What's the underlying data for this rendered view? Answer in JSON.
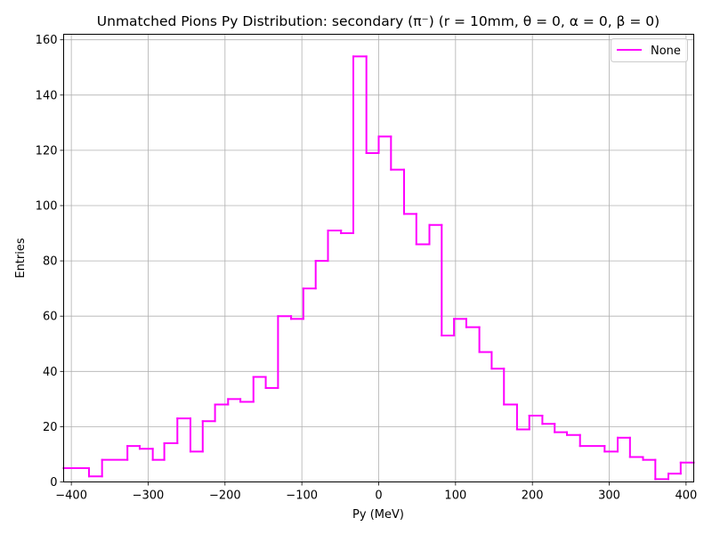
{
  "chart_data": {
    "type": "step",
    "title": "Unmatched Pions Py Distribution: secondary (π⁻) (r = 10mm, θ = 0, α = 0, β = 0)",
    "xlabel": "Py (MeV)",
    "ylabel": "Entries",
    "xlim": [
      -410,
      410
    ],
    "ylim": [
      0,
      162
    ],
    "grid": true,
    "legend_position": "top-right",
    "line_color": "#ff00ff",
    "xticks": [
      -400,
      -300,
      -200,
      -100,
      0,
      100,
      200,
      300,
      400
    ],
    "xtick_labels": [
      "−400",
      "−300",
      "−200",
      "−100",
      "0",
      "100",
      "200",
      "300",
      "400"
    ],
    "yticks": [
      0,
      20,
      40,
      60,
      80,
      100,
      120,
      140,
      160
    ],
    "ytick_labels": [
      "0",
      "20",
      "40",
      "60",
      "80",
      "100",
      "120",
      "140",
      "160"
    ],
    "series": [
      {
        "name": "None",
        "bin_edges": [
          -410,
          -377,
          -360,
          -327,
          -311,
          -294,
          -279,
          -262,
          -245,
          -229,
          -213,
          -196,
          -180,
          -163,
          -147,
          -131,
          -114,
          -98,
          -82,
          -66,
          -49,
          -33,
          -16,
          0,
          16,
          33,
          49,
          66,
          82,
          98,
          114,
          131,
          147,
          163,
          180,
          196,
          213,
          229,
          245,
          262,
          294,
          311,
          327,
          344,
          360,
          377,
          393,
          410
        ],
        "values": [
          5,
          2,
          8,
          13,
          12,
          8,
          14,
          23,
          11,
          22,
          28,
          30,
          29,
          38,
          34,
          60,
          59,
          70,
          80,
          91,
          90,
          154,
          119,
          125,
          113,
          97,
          86,
          93,
          53,
          59,
          56,
          47,
          41,
          28,
          19,
          24,
          21,
          18,
          17,
          13,
          11,
          16,
          9,
          8,
          1,
          3,
          7
        ]
      }
    ]
  }
}
